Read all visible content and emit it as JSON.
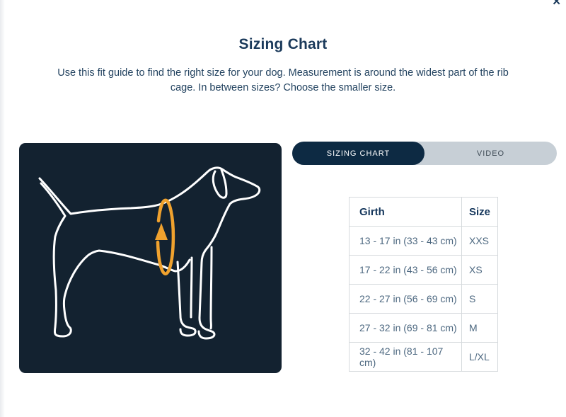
{
  "modal": {
    "title": "Sizing Chart",
    "description": "Use this fit guide to find the right size for your dog. Measurement is around the widest part of the rib cage. In between sizes? Choose the smaller size.",
    "close_icon": "✕"
  },
  "tabs": [
    {
      "label": "SIZING CHART",
      "active": true
    },
    {
      "label": "VIDEO",
      "active": false
    }
  ],
  "size_table": {
    "columns": [
      "Girth",
      "Size"
    ],
    "rows": [
      [
        "13 - 17 in (33 - 43 cm)",
        "XXS"
      ],
      [
        "17 - 22 in (43 - 56 cm)",
        "XS"
      ],
      [
        "22 - 27 in (56 - 69 cm)",
        "S"
      ],
      [
        "27 - 32 in (69 - 81 cm)",
        "M"
      ],
      [
        "32 - 42 in (81 - 107 cm)",
        "L/XL"
      ]
    ]
  },
  "illustration": {
    "name": "dog-girth-measurement-diagram",
    "panel_color": "#132230",
    "line_color": "#FFFFFF",
    "arrow_color": "#F0A22E"
  },
  "colors": {
    "accent_navy": "#0D2A43",
    "text_navy": "#1B3A5B",
    "table_header_text": "#14365B",
    "table_body_text": "#4D6880",
    "inactive_tab_bg": "#C7CFD6",
    "table_border": "#D6DADD"
  }
}
